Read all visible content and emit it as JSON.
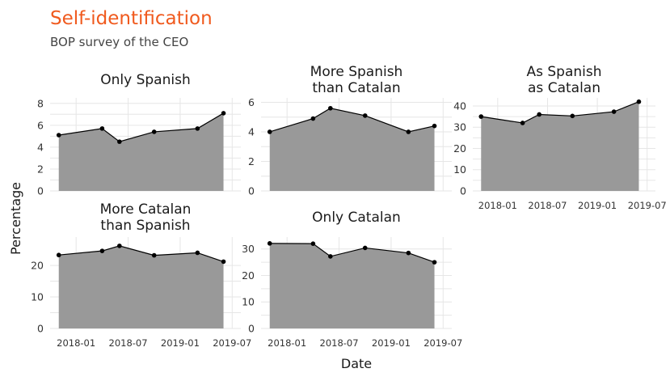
{
  "colors": {
    "title": "#f05a1e",
    "area": "#999999",
    "line": "#000000",
    "grid": "#e6e6e6"
  },
  "chart_data": {
    "type": "area",
    "title": "Self-identification",
    "subtitle": "BOP survey of the CEO",
    "xlabel": "Date",
    "ylabel": "Percentage",
    "x_ticks": [
      "2018-01",
      "2018-07",
      "2019-01",
      "2019-07"
    ],
    "x": [
      "2017-11",
      "2018-04",
      "2018-06",
      "2018-10",
      "2019-03",
      "2019-06"
    ],
    "grid": true,
    "facets": [
      {
        "name": "Only Spanish",
        "values": [
          5.1,
          5.7,
          4.5,
          5.4,
          5.7,
          7.1
        ],
        "y_ticks": [
          0,
          2,
          4,
          6,
          8
        ],
        "ylim": [
          0,
          8.5
        ]
      },
      {
        "name": "More Spanish than Catalan",
        "values": [
          4.0,
          4.9,
          5.6,
          5.1,
          4.0,
          4.4
        ],
        "y_ticks": [
          0,
          2,
          4,
          6
        ],
        "ylim": [
          0,
          6.3
        ]
      },
      {
        "name": "As Spanish as Catalan",
        "values": [
          35.0,
          32.0,
          36.0,
          35.3,
          37.3,
          42.0
        ],
        "y_ticks": [
          0,
          10,
          20,
          30,
          40
        ],
        "ylim": [
          0,
          43.8
        ]
      },
      {
        "name": "More Catalan than Spanish",
        "values": [
          23.3,
          24.6,
          26.2,
          23.2,
          24.0,
          21.2
        ],
        "y_ticks": [
          0,
          10,
          20
        ],
        "ylim": [
          0,
          29.0
        ]
      },
      {
        "name": "Only Catalan",
        "values": [
          32.1,
          32.0,
          27.2,
          30.4,
          28.5,
          25.0
        ],
        "y_ticks": [
          0,
          10,
          20,
          30
        ],
        "ylim": [
          0,
          34.5
        ]
      }
    ]
  }
}
